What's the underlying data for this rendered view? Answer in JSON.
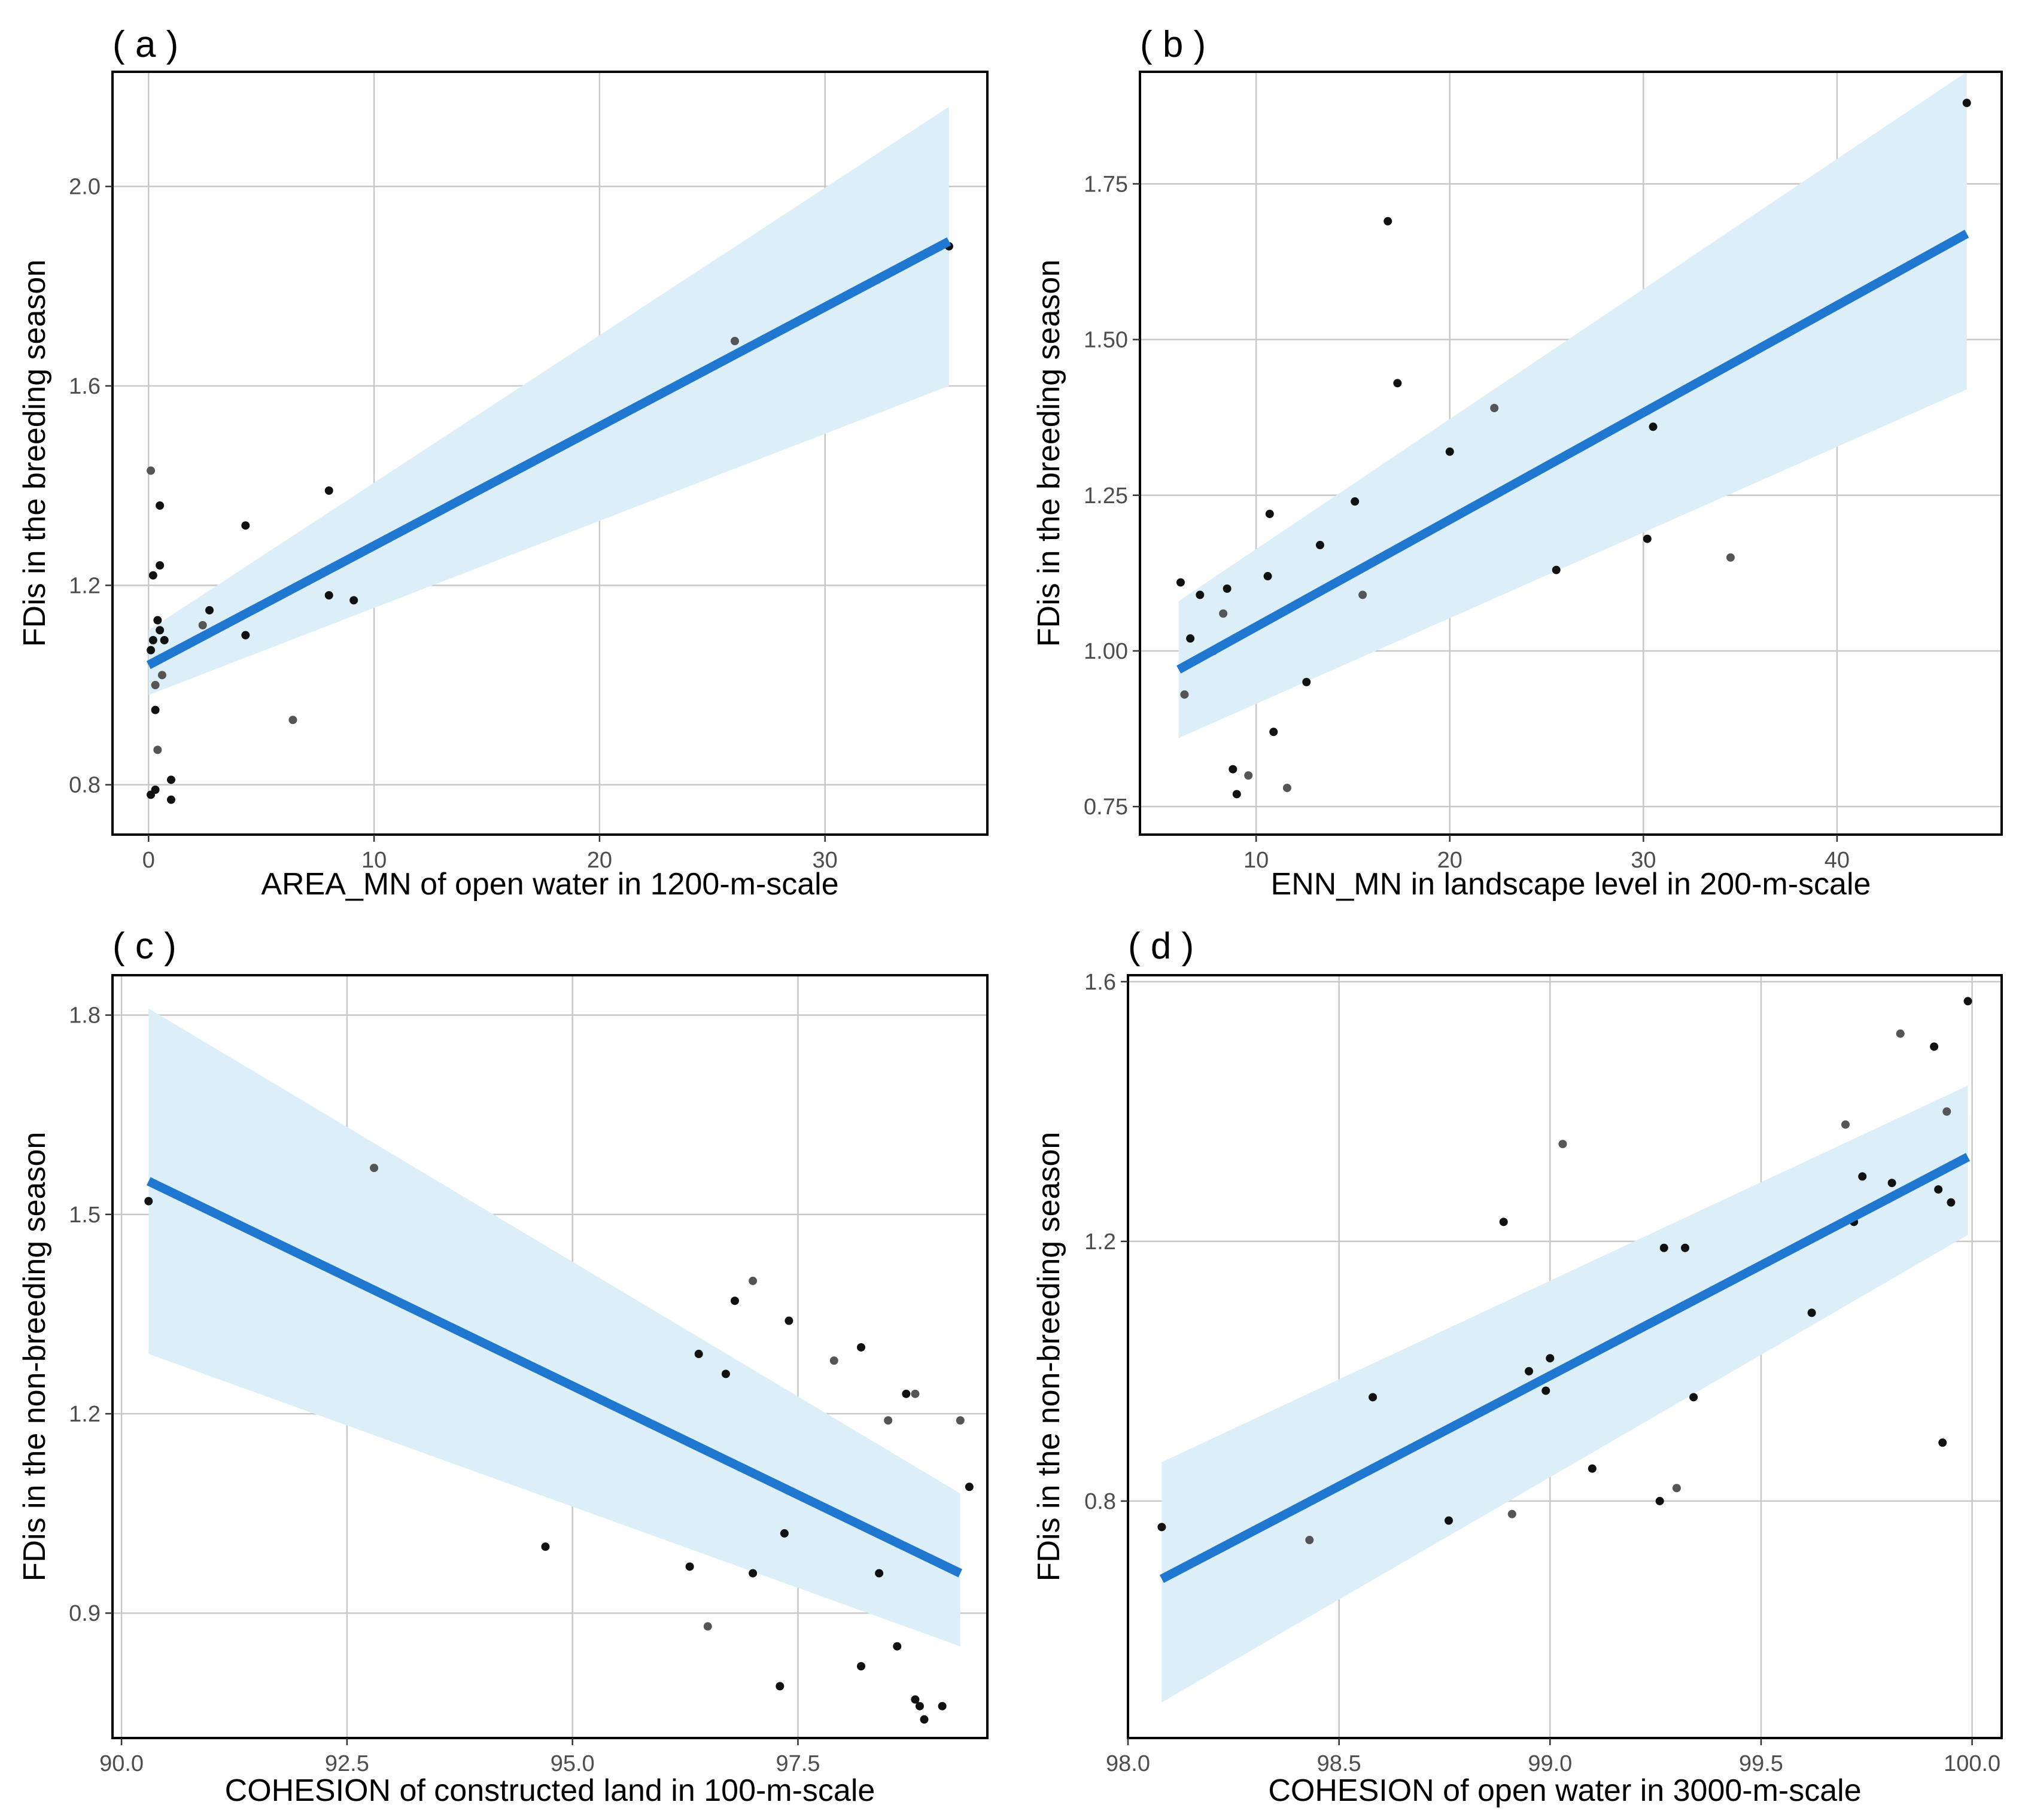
{
  "chart_data": [
    {
      "panel_label": "( a )",
      "type": "scatter",
      "xlabel": "AREA_MN of open water in 1200-m-scale",
      "ylabel": "FDis in the breeding season",
      "xlim": [
        -1.6,
        37.2
      ],
      "ylim": [
        0.7,
        2.23
      ],
      "xticks": [
        0,
        10,
        20,
        30
      ],
      "yticks": [
        0.8,
        1.2,
        1.6,
        2.0
      ],
      "ytick_labels": [
        "0.8",
        "1.2",
        "1.6",
        "2.0"
      ],
      "grid": true,
      "points": [
        {
          "x": 0.1,
          "y": 1.07
        },
        {
          "x": 0.1,
          "y": 1.43
        },
        {
          "x": 0.1,
          "y": 0.78
        },
        {
          "x": 0.2,
          "y": 1.22
        },
        {
          "x": 0.2,
          "y": 1.09
        },
        {
          "x": 0.3,
          "y": 1.0
        },
        {
          "x": 0.3,
          "y": 0.79
        },
        {
          "x": 0.3,
          "y": 0.95
        },
        {
          "x": 0.4,
          "y": 1.13
        },
        {
          "x": 0.4,
          "y": 0.87
        },
        {
          "x": 0.5,
          "y": 1.11
        },
        {
          "x": 0.5,
          "y": 1.24
        },
        {
          "x": 0.5,
          "y": 1.36
        },
        {
          "x": 0.6,
          "y": 1.02
        },
        {
          "x": 0.7,
          "y": 1.09
        },
        {
          "x": 1.0,
          "y": 0.81
        },
        {
          "x": 1.0,
          "y": 0.77
        },
        {
          "x": 2.4,
          "y": 1.12
        },
        {
          "x": 2.7,
          "y": 1.15
        },
        {
          "x": 4.3,
          "y": 1.32
        },
        {
          "x": 4.3,
          "y": 1.1
        },
        {
          "x": 6.4,
          "y": 0.93
        },
        {
          "x": 8.0,
          "y": 1.39
        },
        {
          "x": 8.0,
          "y": 1.18
        },
        {
          "x": 9.1,
          "y": 1.17
        },
        {
          "x": 26.0,
          "y": 1.69
        },
        {
          "x": 35.5,
          "y": 1.88
        }
      ],
      "fit": {
        "x": [
          0,
          35.5
        ],
        "y": [
          1.04,
          1.89
        ],
        "ci_low": [
          0.98,
          1.6
        ],
        "ci_high": [
          1.11,
          2.16
        ]
      }
    },
    {
      "panel_label": "( b )",
      "type": "scatter",
      "xlabel": "ENN_MN in landscape level in 200-m-scale",
      "ylabel": "FDis in the breeding season",
      "xlim": [
        4.0,
        48.5
      ],
      "ylim": [
        0.705,
        1.93
      ],
      "xticks": [
        10,
        20,
        30,
        40
      ],
      "yticks": [
        0.75,
        1.0,
        1.25,
        1.5,
        1.75
      ],
      "ytick_labels": [
        "0.75",
        "1.00",
        "1.25",
        "1.50",
        "1.75"
      ],
      "grid": true,
      "points": [
        {
          "x": 6.1,
          "y": 1.11
        },
        {
          "x": 6.3,
          "y": 0.93
        },
        {
          "x": 6.6,
          "y": 1.02
        },
        {
          "x": 7.1,
          "y": 1.09
        },
        {
          "x": 7.8,
          "y": 1.0
        },
        {
          "x": 8.3,
          "y": 1.06
        },
        {
          "x": 8.5,
          "y": 1.1
        },
        {
          "x": 8.8,
          "y": 0.81
        },
        {
          "x": 9.0,
          "y": 0.77
        },
        {
          "x": 9.6,
          "y": 0.8
        },
        {
          "x": 10.6,
          "y": 1.12
        },
        {
          "x": 10.7,
          "y": 1.22
        },
        {
          "x": 10.9,
          "y": 0.87
        },
        {
          "x": 11.6,
          "y": 0.78
        },
        {
          "x": 12.6,
          "y": 0.95
        },
        {
          "x": 13.3,
          "y": 1.17
        },
        {
          "x": 15.1,
          "y": 1.24
        },
        {
          "x": 15.5,
          "y": 1.09
        },
        {
          "x": 16.8,
          "y": 1.69
        },
        {
          "x": 17.3,
          "y": 1.43
        },
        {
          "x": 20.0,
          "y": 1.32
        },
        {
          "x": 22.3,
          "y": 1.39
        },
        {
          "x": 25.5,
          "y": 1.13
        },
        {
          "x": 30.2,
          "y": 1.18
        },
        {
          "x": 30.5,
          "y": 1.36
        },
        {
          "x": 34.5,
          "y": 1.15
        },
        {
          "x": 46.7,
          "y": 1.88
        }
      ],
      "fit": {
        "x": [
          6.0,
          46.7
        ],
        "y": [
          0.97,
          1.67
        ],
        "ci_low": [
          0.86,
          1.42
        ],
        "ci_high": [
          1.08,
          1.93
        ]
      }
    },
    {
      "panel_label": "( c )",
      "type": "scatter",
      "xlabel": "COHESION of constructed land in 100-m-scale",
      "ylabel": "FDis in the non-breeding season",
      "xlim": [
        89.9,
        99.6
      ],
      "ylim": [
        0.712,
        1.86
      ],
      "xticks": [
        90.0,
        92.5,
        95.0,
        97.5
      ],
      "xtick_labels": [
        "90.0",
        "92.5",
        "95.0",
        "97.5"
      ],
      "yticks": [
        0.9,
        1.2,
        1.5,
        1.8
      ],
      "ytick_labels": [
        "0.9",
        "1.2",
        "1.5",
        "1.8"
      ],
      "grid": true,
      "points": [
        {
          "x": 90.3,
          "y": 1.52
        },
        {
          "x": 92.8,
          "y": 1.57
        },
        {
          "x": 94.7,
          "y": 1.0
        },
        {
          "x": 96.3,
          "y": 0.97
        },
        {
          "x": 96.4,
          "y": 1.29
        },
        {
          "x": 96.5,
          "y": 0.88
        },
        {
          "x": 96.7,
          "y": 1.26
        },
        {
          "x": 96.8,
          "y": 1.37
        },
        {
          "x": 97.0,
          "y": 0.96
        },
        {
          "x": 97.0,
          "y": 1.4
        },
        {
          "x": 97.3,
          "y": 0.79
        },
        {
          "x": 97.35,
          "y": 1.02
        },
        {
          "x": 97.4,
          "y": 1.34
        },
        {
          "x": 97.9,
          "y": 1.28
        },
        {
          "x": 98.2,
          "y": 0.82
        },
        {
          "x": 98.2,
          "y": 1.3
        },
        {
          "x": 98.4,
          "y": 0.96
        },
        {
          "x": 98.5,
          "y": 1.19
        },
        {
          "x": 98.6,
          "y": 0.85
        },
        {
          "x": 98.7,
          "y": 1.23
        },
        {
          "x": 98.8,
          "y": 0.77
        },
        {
          "x": 98.8,
          "y": 1.23
        },
        {
          "x": 98.85,
          "y": 0.76
        },
        {
          "x": 98.9,
          "y": 0.74
        },
        {
          "x": 99.1,
          "y": 0.76
        },
        {
          "x": 99.3,
          "y": 1.19
        },
        {
          "x": 99.4,
          "y": 1.09
        }
      ],
      "fit": {
        "x": [
          90.3,
          99.3
        ],
        "y": [
          1.55,
          0.96
        ],
        "ci_low": [
          1.29,
          0.85
        ],
        "ci_high": [
          1.81,
          1.08
        ]
      }
    },
    {
      "panel_label": "( d )",
      "type": "scatter",
      "xlabel": "COHESION of open water in 3000-m-scale",
      "ylabel": "FDis in the non-breeding season",
      "xlim": [
        98.0,
        100.07
      ],
      "ylim": [
        0.435,
        1.61
      ],
      "xticks": [
        98.0,
        98.5,
        99.0,
        99.5,
        100.0
      ],
      "xtick_labels": [
        "98.0",
        "98.5",
        "99.0",
        "99.5",
        "100.0"
      ],
      "yticks": [
        0.8,
        1.2,
        1.6
      ],
      "ytick_labels": [
        "0.8",
        "1.2",
        "1.6"
      ],
      "grid": true,
      "points": [
        {
          "x": 98.08,
          "y": 0.76
        },
        {
          "x": 98.43,
          "y": 0.74
        },
        {
          "x": 98.58,
          "y": 0.96
        },
        {
          "x": 98.76,
          "y": 0.77
        },
        {
          "x": 98.89,
          "y": 1.23
        },
        {
          "x": 98.91,
          "y": 0.78
        },
        {
          "x": 98.95,
          "y": 1.0
        },
        {
          "x": 98.99,
          "y": 0.97
        },
        {
          "x": 99.0,
          "y": 1.02
        },
        {
          "x": 99.03,
          "y": 1.35
        },
        {
          "x": 99.1,
          "y": 0.85
        },
        {
          "x": 99.26,
          "y": 0.8
        },
        {
          "x": 99.27,
          "y": 1.19
        },
        {
          "x": 99.3,
          "y": 0.82
        },
        {
          "x": 99.32,
          "y": 1.19
        },
        {
          "x": 99.34,
          "y": 0.96
        },
        {
          "x": 99.62,
          "y": 1.09
        },
        {
          "x": 99.7,
          "y": 1.38
        },
        {
          "x": 99.72,
          "y": 1.23
        },
        {
          "x": 99.74,
          "y": 1.3
        },
        {
          "x": 99.81,
          "y": 1.29
        },
        {
          "x": 99.83,
          "y": 1.52
        },
        {
          "x": 99.91,
          "y": 1.5
        },
        {
          "x": 99.92,
          "y": 1.28
        },
        {
          "x": 99.93,
          "y": 0.89
        },
        {
          "x": 99.94,
          "y": 1.4
        },
        {
          "x": 99.95,
          "y": 1.26
        },
        {
          "x": 99.99,
          "y": 1.57
        }
      ],
      "fit": {
        "x": [
          98.08,
          99.99
        ],
        "y": [
          0.68,
          1.33
        ],
        "ci_low": [
          0.49,
          1.21
        ],
        "ci_high": [
          0.86,
          1.44
        ]
      }
    }
  ],
  "colors": {
    "fit_line": "#1f77d0",
    "ci_band": "#dceff8",
    "point_dark": "#111111",
    "point_grey": "#555555"
  }
}
